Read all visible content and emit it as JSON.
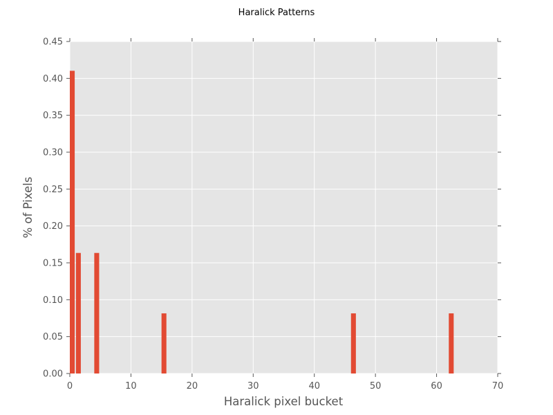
{
  "chart_data": {
    "type": "bar",
    "title": "Haralick Patterns",
    "xlabel": "Haralick pixel bucket",
    "ylabel": "% of Pixels",
    "xlim": [
      0,
      70
    ],
    "ylim": [
      0,
      0.45
    ],
    "x_ticks": [
      "0",
      "10",
      "20",
      "30",
      "40",
      "50",
      "60",
      "70"
    ],
    "y_ticks": [
      "0.00",
      "0.05",
      "0.10",
      "0.15",
      "0.20",
      "0.25",
      "0.30",
      "0.35",
      "0.40",
      "0.45"
    ],
    "grid": true,
    "bar_width": 0.8,
    "bar_color": "#E24A33",
    "background_color": "#E5E5E5",
    "x": [
      0,
      1,
      4,
      15,
      46,
      62
    ],
    "values": [
      0.4103,
      0.1634,
      0.1634,
      0.0815,
      0.0815,
      0.0815
    ]
  }
}
